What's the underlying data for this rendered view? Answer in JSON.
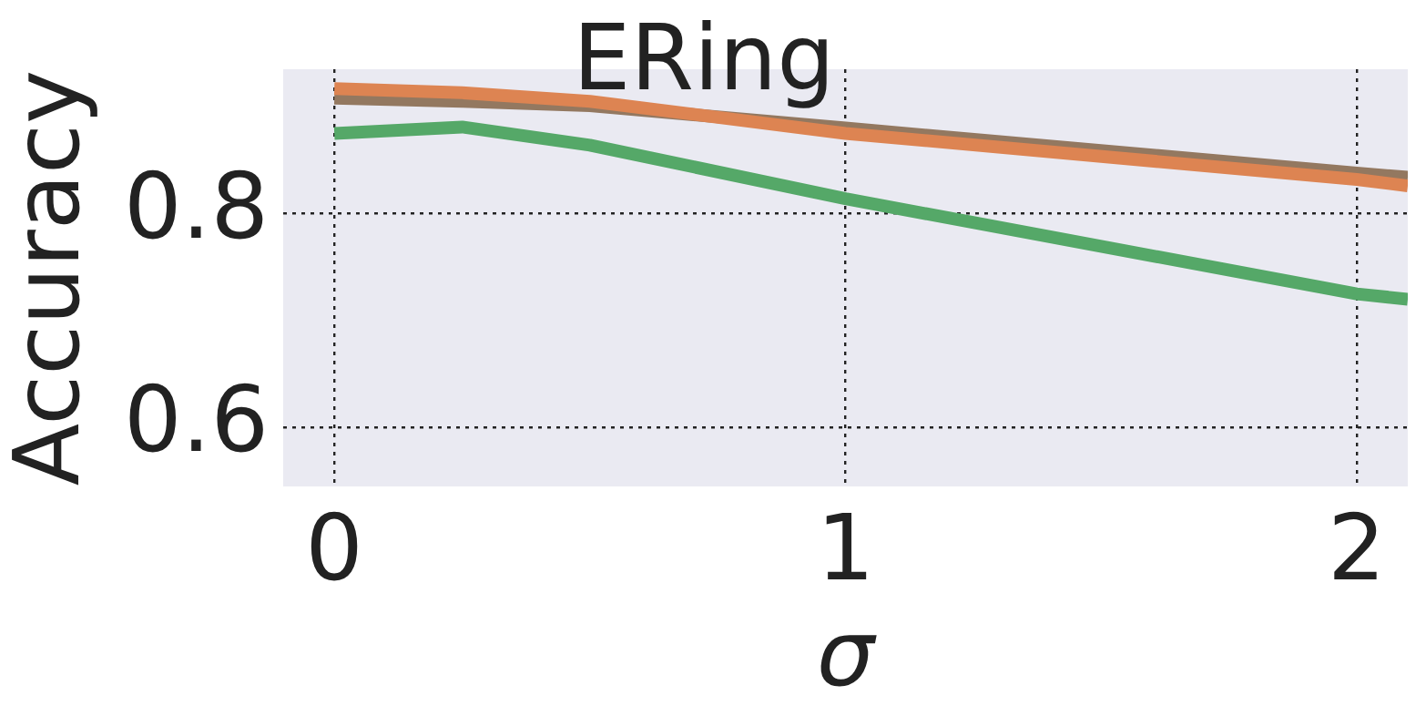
{
  "chart_data": {
    "type": "line",
    "title": "ERing",
    "xlabel": "σ",
    "ylabel": "Accuracy",
    "x": [
      0,
      0.25,
      0.5,
      1,
      2,
      2.1
    ],
    "series": [
      {
        "color": "#dd8452",
        "values": [
          0.917,
          0.913,
          0.905,
          0.875,
          0.832,
          0.826
        ]
      },
      {
        "color": "#937860",
        "values": [
          0.908,
          0.905,
          0.901,
          0.88,
          0.838,
          0.834
        ]
      },
      {
        "color": "#55a868",
        "values": [
          0.875,
          0.881,
          0.864,
          0.814,
          0.725,
          0.72
        ]
      }
    ],
    "xlim": [
      -0.1,
      2.1
    ],
    "xticks": [
      0,
      1,
      2
    ],
    "ylim": [
      0.545,
      0.935
    ],
    "yticks": [
      0.6,
      0.8
    ],
    "grid": true,
    "legend": false,
    "marker": "none",
    "line_style": "solid"
  }
}
